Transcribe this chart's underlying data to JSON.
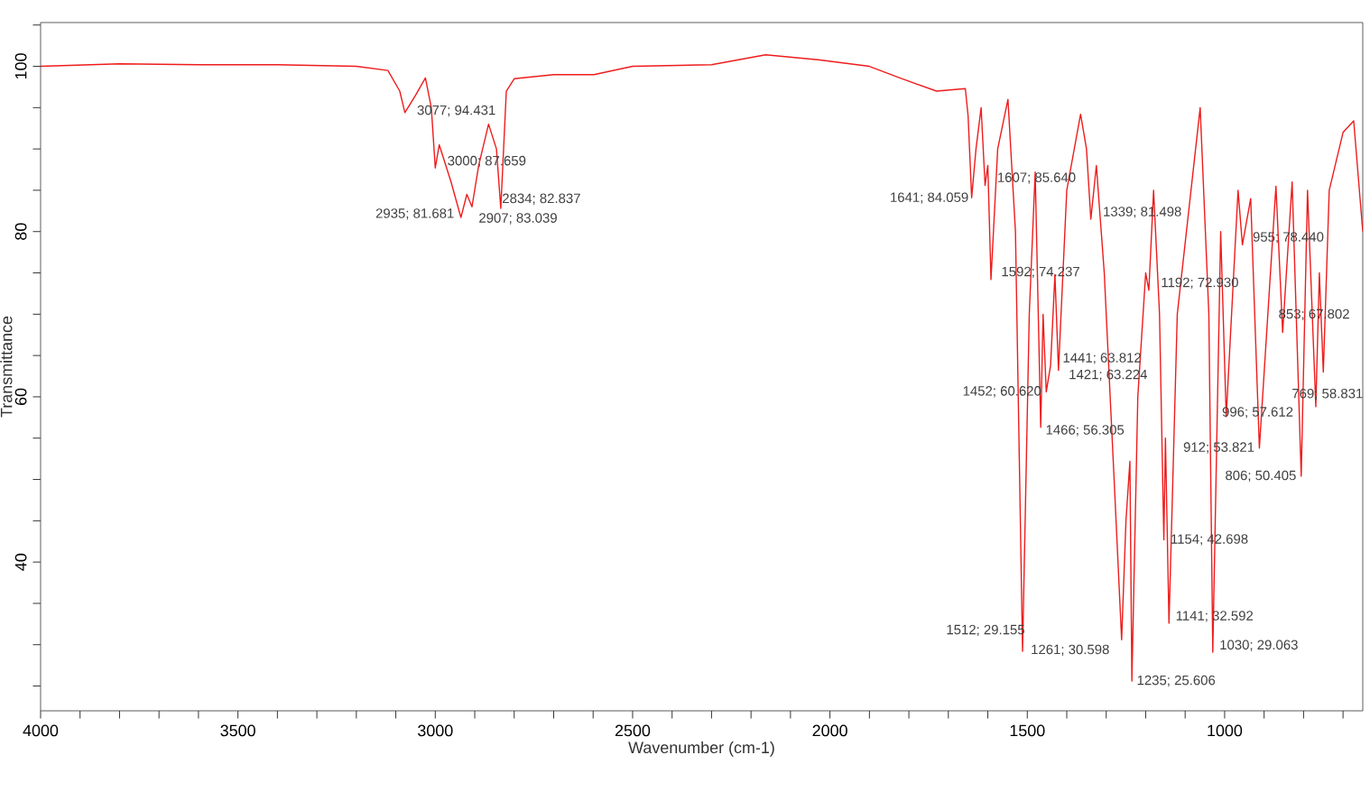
{
  "chart_data": {
    "type": "line",
    "xlabel": "Wavenumber (cm-1)",
    "ylabel": "Transmittance",
    "xlim": [
      4000,
      650
    ],
    "ylim": [
      22,
      105.3
    ],
    "xticks": [
      4000,
      {
        "value": 3900,
        "label": null
      },
      {
        "value": 3800,
        "label": null
      },
      {
        "value": 3700,
        "label": null
      },
      {
        "value": 3600,
        "label": null
      },
      3500,
      {
        "value": 3400,
        "label": null
      },
      {
        "value": 3300,
        "label": null
      },
      {
        "value": 3200,
        "label": null
      },
      {
        "value": 3100,
        "label": null
      },
      3000,
      {
        "value": 2900,
        "label": null
      },
      {
        "value": 2800,
        "label": null
      },
      {
        "value": 2700,
        "label": null
      },
      {
        "value": 2600,
        "label": null
      },
      2500,
      {
        "value": 2400,
        "label": null
      },
      {
        "value": 2300,
        "label": null
      },
      {
        "value": 2200,
        "label": null
      },
      {
        "value": 2100,
        "label": null
      },
      2000,
      {
        "value": 1900,
        "label": null
      },
      {
        "value": 1800,
        "label": null
      },
      {
        "value": 1700,
        "label": null
      },
      {
        "value": 1600,
        "label": null
      },
      1500,
      {
        "value": 1400,
        "label": null
      },
      {
        "value": 1300,
        "label": null
      },
      {
        "value": 1200,
        "label": null
      },
      {
        "value": 1100,
        "label": null
      },
      1000,
      {
        "value": 900,
        "label": null
      },
      {
        "value": 800,
        "label": null
      },
      {
        "value": 700,
        "label": null
      }
    ],
    "yticks": [
      {
        "value": 25,
        "label": null
      },
      {
        "value": 30,
        "label": null
      },
      {
        "value": 35,
        "label": null
      },
      40,
      {
        "value": 45,
        "label": null
      },
      {
        "value": 50,
        "label": null
      },
      {
        "value": 55,
        "label": null
      },
      60,
      {
        "value": 65,
        "label": null
      },
      {
        "value": 70,
        "label": null
      },
      {
        "value": 75,
        "label": null
      },
      80,
      {
        "value": 85,
        "label": null
      },
      {
        "value": 90,
        "label": null
      },
      {
        "value": 95,
        "label": null
      },
      100,
      {
        "value": 105,
        "label": null
      }
    ],
    "grid": false,
    "marker": "none",
    "line_style": "solid",
    "series": [
      {
        "color": "#ee1c1c",
        "x": [
          4000,
          3800,
          3600,
          3400,
          3200,
          3120,
          3090,
          3077,
          3050,
          3025,
          3010,
          3000,
          2990,
          2960,
          2935,
          2920,
          2907,
          2890,
          2865,
          2845,
          2834,
          2820,
          2800,
          2700,
          2598,
          2500,
          2300,
          2163,
          2030,
          1900,
          1823,
          1730,
          1657,
          1650,
          1641,
          1630,
          1617,
          1607,
          1600,
          1592,
          1575,
          1549,
          1530,
          1512,
          1495,
          1480,
          1466,
          1460,
          1452,
          1441,
          1430,
          1421,
          1400,
          1365,
          1350,
          1339,
          1325,
          1305,
          1280,
          1261,
          1250,
          1240,
          1235,
          1220,
          1200,
          1192,
          1180,
          1165,
          1154,
          1150,
          1141,
          1120,
          1062,
          1040,
          1030,
          1010,
          996,
          966,
          955,
          934,
          912,
          870,
          853,
          829,
          806,
          790,
          769,
          760,
          750,
          735,
          700,
          673,
          650
        ],
        "values": [
          100,
          100.3,
          100.2,
          100.2,
          100,
          99.5,
          97,
          94.4,
          96.5,
          98.6,
          95,
          87.7,
          90.5,
          86,
          81.7,
          84.5,
          83,
          88,
          93,
          90,
          82.8,
          97,
          98.5,
          99,
          99,
          100,
          100.2,
          101.4,
          100.8,
          100,
          98.6,
          97,
          97.3,
          94,
          84.1,
          90,
          95,
          85.6,
          88,
          74.2,
          90,
          96,
          80,
          29.2,
          70,
          87.2,
          56.3,
          70,
          60.6,
          63.8,
          74.8,
          63.2,
          85,
          94.2,
          90,
          81.5,
          88,
          75,
          50,
          30.6,
          45,
          52.2,
          25.6,
          60,
          75,
          72.9,
          85,
          70,
          42.7,
          55,
          32.6,
          70,
          95,
          70,
          29.1,
          80,
          57.6,
          85,
          78.4,
          84,
          53.8,
          85.5,
          67.8,
          86,
          50.4,
          85,
          58.8,
          75,
          63,
          85,
          92,
          93.4,
          80
        ]
      }
    ],
    "annotations": [
      {
        "text": "3077; 94.431",
        "x": 3077,
        "y": 94.431
      },
      {
        "text": "3000; 87.659",
        "x": 3000,
        "y": 87.659
      },
      {
        "text": "2935; 81.681",
        "x": 2935,
        "y": 81.681
      },
      {
        "text": "2834; 82.837",
        "x": 2834,
        "y": 82.837
      },
      {
        "text": "2907; 83.039",
        "x": 2907,
        "y": 83.039
      },
      {
        "text": "1641; 84.059",
        "x": 1641,
        "y": 84.059
      },
      {
        "text": "1607; 85.640",
        "x": 1607,
        "y": 85.64
      },
      {
        "text": "1339; 81.498",
        "x": 1339,
        "y": 81.498
      },
      {
        "text": "955; 78.440",
        "x": 955,
        "y": 78.44
      },
      {
        "text": "1592; 74.237",
        "x": 1592,
        "y": 74.237
      },
      {
        "text": "1192; 72.930",
        "x": 1192,
        "y": 72.93
      },
      {
        "text": "853; 67.802",
        "x": 853,
        "y": 67.802
      },
      {
        "text": "1441; 63.812",
        "x": 1441,
        "y": 63.812
      },
      {
        "text": "1421; 63.224",
        "x": 1421,
        "y": 63.224
      },
      {
        "text": "769; 58.831",
        "x": 769,
        "y": 58.831
      },
      {
        "text": "1452; 60.620",
        "x": 1452,
        "y": 60.62
      },
      {
        "text": "1466; 56.305",
        "x": 1466,
        "y": 56.305
      },
      {
        "text": "996; 57.612",
        "x": 996,
        "y": 57.612
      },
      {
        "text": "912; 53.821",
        "x": 912,
        "y": 53.821
      },
      {
        "text": "806; 50.405",
        "x": 806,
        "y": 50.405
      },
      {
        "text": "1154; 42.698",
        "x": 1154,
        "y": 42.698
      },
      {
        "text": "1512; 29.155",
        "x": 1512,
        "y": 29.155
      },
      {
        "text": "1141; 32.592",
        "x": 1141,
        "y": 32.592
      },
      {
        "text": "1030; 29.063",
        "x": 1030,
        "y": 29.063
      },
      {
        "text": "1261; 30.598",
        "x": 1261,
        "y": 30.598
      },
      {
        "text": "1235; 25.606",
        "x": 1235,
        "y": 25.606
      }
    ]
  }
}
